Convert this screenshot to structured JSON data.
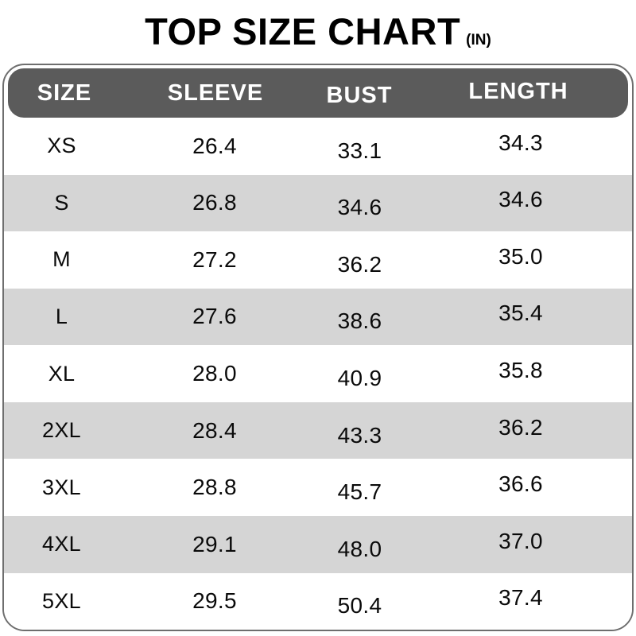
{
  "title": {
    "text": "TOP SIZE CHART",
    "unit": "(IN)"
  },
  "chart_data": {
    "type": "table",
    "title": "TOP SIZE CHART (IN)",
    "unit": "inches",
    "columns": [
      "SIZE",
      "SLEEVE",
      "BUST",
      "LENGTH"
    ],
    "rows": [
      {
        "size": "XS",
        "sleeve": "26.4",
        "bust": "33.1",
        "length": "34.3"
      },
      {
        "size": "S",
        "sleeve": "26.8",
        "bust": "34.6",
        "length": "34.6"
      },
      {
        "size": "M",
        "sleeve": "27.2",
        "bust": "36.2",
        "length": "35.0"
      },
      {
        "size": "L",
        "sleeve": "27.6",
        "bust": "38.6",
        "length": "35.4"
      },
      {
        "size": "XL",
        "sleeve": "28.0",
        "bust": "40.9",
        "length": "35.8"
      },
      {
        "size": "2XL",
        "sleeve": "28.4",
        "bust": "43.3",
        "length": "36.2"
      },
      {
        "size": "3XL",
        "sleeve": "28.8",
        "bust": "45.7",
        "length": "36.6"
      },
      {
        "size": "4XL",
        "sleeve": "29.1",
        "bust": "48.0",
        "length": "37.0"
      },
      {
        "size": "5XL",
        "sleeve": "29.5",
        "bust": "50.4",
        "length": "37.4"
      }
    ]
  },
  "colors": {
    "header_bg": "#5b5b5b",
    "header_text": "#ffffff",
    "stripe": "#d5d5d5",
    "border": "#6e6e6e",
    "title_text": "#000000",
    "cell_text": "#0a0a0a",
    "background": "#ffffff"
  }
}
